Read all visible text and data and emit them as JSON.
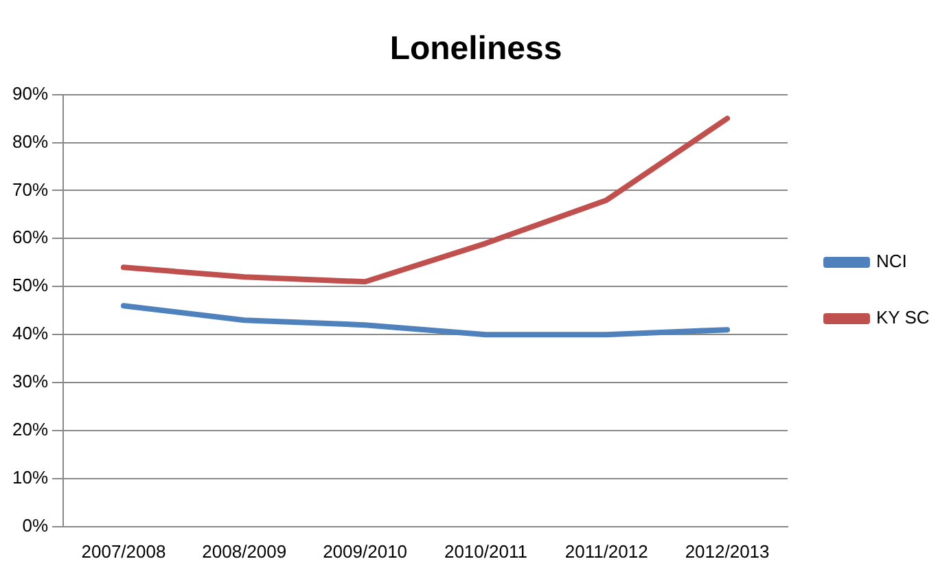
{
  "chart_data": {
    "type": "line",
    "title": "Loneliness",
    "categories": [
      "2007/2008",
      "2008/2009",
      "2009/2010",
      "2010/2011",
      "2011/2012",
      "2012/2013"
    ],
    "series": [
      {
        "name": "NCI",
        "color": "#4f81bd",
        "values": [
          46,
          43,
          42,
          40,
          40,
          41
        ]
      },
      {
        "name": "KY SC",
        "color": "#c0504d",
        "values": [
          54,
          52,
          51,
          59,
          68,
          85
        ]
      }
    ],
    "ylim": [
      0,
      90
    ],
    "yticks": [
      {
        "value": 0,
        "label": "0%"
      },
      {
        "value": 10,
        "label": "10%"
      },
      {
        "value": 20,
        "label": "20%"
      },
      {
        "value": 30,
        "label": "30%"
      },
      {
        "value": 40,
        "label": "40%"
      },
      {
        "value": 50,
        "label": "50%"
      },
      {
        "value": 60,
        "label": "60%"
      },
      {
        "value": 70,
        "label": "70%"
      },
      {
        "value": 80,
        "label": "80%"
      },
      {
        "value": 90,
        "label": "90%"
      }
    ],
    "grid": "y",
    "legend": "right",
    "marker": "none",
    "line_style": "solid"
  }
}
